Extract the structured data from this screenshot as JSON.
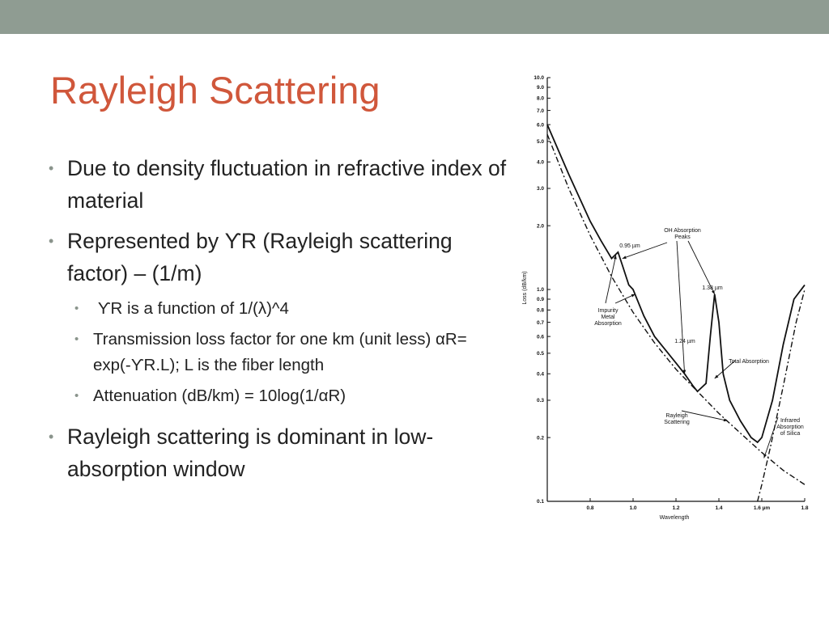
{
  "slide": {
    "title": "Rayleigh Scattering",
    "accent_color": "#d0573b",
    "bar_color": "#8f9c92",
    "bullets": [
      {
        "text": "Due to density fluctuation in refractive index of material"
      },
      {
        "text": "Represented by ϒR (Rayleigh scattering factor) – (1/m)",
        "sub": [
          " ϒR is a function of 1/(λ)^4",
          "Transmission loss factor for one km (unit less) αR= exp(-ϒR.L); L is the fiber length",
          "Attenuation (dB/km) = 10log(1/αR)"
        ]
      },
      {
        "text": "Rayleigh scattering is dominant in low-absorption window"
      }
    ]
  },
  "chart_data": {
    "type": "line",
    "xlabel": "Wavelength",
    "ylabel": "Loss (dB/km)",
    "xlim": [
      0.6,
      1.8
    ],
    "ylim": [
      0.1,
      10.0
    ],
    "y_scale": "log",
    "x_tick_labels": [
      "0.8",
      "1.0",
      "1.2",
      "1.4",
      "1.6 µm",
      "1.8"
    ],
    "x_ticks": [
      0.8,
      1.0,
      1.2,
      1.4,
      1.6,
      1.8
    ],
    "y_tick_labels": [
      "10.0",
      "9.0",
      "8.0",
      "7.0",
      "6.0",
      "5.0",
      "4.0",
      "3.0",
      "2.0",
      "1.0",
      "0.9",
      "0.8",
      "0.7",
      "0.6",
      "0.5",
      "0.4",
      "0.3",
      "0.2",
      "0.1"
    ],
    "y_ticks": [
      10,
      9,
      8,
      7,
      6,
      5,
      4,
      3,
      2,
      1,
      0.9,
      0.8,
      0.7,
      0.6,
      0.5,
      0.4,
      0.3,
      0.2,
      0.1
    ],
    "series": [
      {
        "name": "Total Absorption",
        "style": "solid",
        "x": [
          0.6,
          0.7,
          0.8,
          0.85,
          0.9,
          0.93,
          0.95,
          0.98,
          1.0,
          1.05,
          1.1,
          1.15,
          1.2,
          1.24,
          1.28,
          1.3,
          1.34,
          1.36,
          1.38,
          1.4,
          1.42,
          1.45,
          1.5,
          1.55,
          1.58,
          1.6,
          1.65,
          1.7,
          1.75,
          1.8
        ],
        "y": [
          6,
          3.5,
          2.1,
          1.7,
          1.4,
          1.5,
          1.3,
          1.05,
          1.0,
          0.75,
          0.6,
          0.52,
          0.45,
          0.4,
          0.35,
          0.33,
          0.36,
          0.6,
          0.95,
          0.7,
          0.4,
          0.3,
          0.24,
          0.2,
          0.19,
          0.2,
          0.3,
          0.55,
          0.9,
          1.05
        ]
      },
      {
        "name": "Rayleigh Scattering",
        "style": "dashed",
        "x": [
          0.6,
          0.7,
          0.8,
          0.9,
          1.0,
          1.1,
          1.2,
          1.3,
          1.4,
          1.5,
          1.6,
          1.7,
          1.8
        ],
        "y": [
          5.4,
          3.0,
          1.8,
          1.15,
          0.78,
          0.56,
          0.42,
          0.33,
          0.26,
          0.21,
          0.17,
          0.14,
          0.12
        ]
      },
      {
        "name": "Infrared Absorption of Silica",
        "style": "dashed",
        "x": [
          1.58,
          1.6,
          1.64,
          1.7,
          1.76,
          1.8
        ],
        "y": [
          0.1,
          0.12,
          0.18,
          0.35,
          0.7,
          1.0
        ]
      }
    ],
    "annotations": [
      "OH Absorption Peaks",
      "0.95 µm",
      "1.38 µm",
      "1.24 µm",
      "Impurity Metal Absorption",
      "Total Absorption",
      "Rayleigh Scattering",
      "Infrared Absorption of Silica"
    ]
  }
}
